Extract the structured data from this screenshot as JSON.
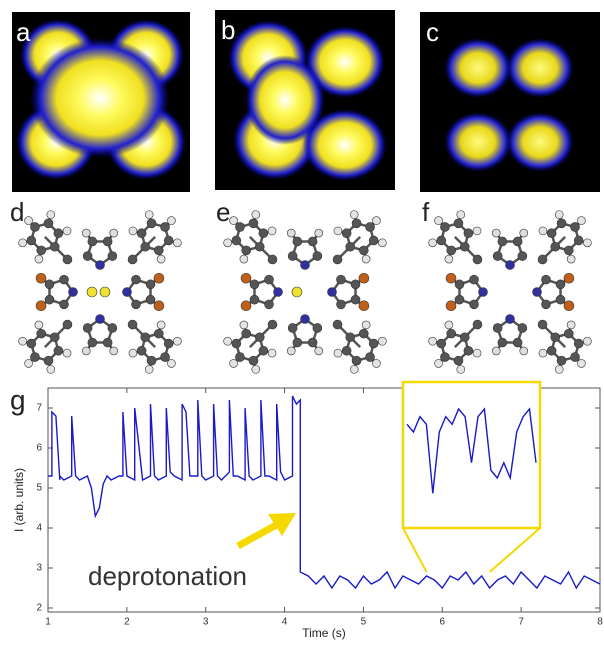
{
  "panel_labels": [
    "a",
    "b",
    "c",
    "d",
    "e",
    "f",
    "g"
  ],
  "chart_data": {
    "type": "line",
    "xlabel": "Time (s)",
    "ylabel": "I (arb. units)",
    "annotation": "deprotonation",
    "color": "#1a1ac8",
    "highlight_color": "#f5d800",
    "xlim": [
      1,
      8
    ],
    "ylim": [
      1.9,
      7.5
    ],
    "xticks": [
      1,
      2,
      3,
      4,
      5,
      6,
      7,
      8
    ],
    "yticks": [
      2,
      3,
      4,
      5,
      6,
      7
    ],
    "x": [
      1.0,
      1.05,
      1.05,
      1.1,
      1.15,
      1.15,
      1.2,
      1.3,
      1.3,
      1.35,
      1.4,
      1.5,
      1.55,
      1.6,
      1.65,
      1.7,
      1.75,
      1.8,
      1.9,
      1.95,
      1.95,
      2.0,
      2.1,
      2.1,
      2.2,
      2.3,
      2.3,
      2.35,
      2.4,
      2.5,
      2.5,
      2.55,
      2.6,
      2.7,
      2.7,
      2.75,
      2.8,
      2.9,
      2.9,
      2.95,
      3.0,
      3.1,
      3.1,
      3.15,
      3.2,
      3.3,
      3.3,
      3.35,
      3.4,
      3.5,
      3.5,
      3.55,
      3.6,
      3.7,
      3.7,
      3.75,
      3.8,
      3.9,
      3.9,
      3.95,
      4.0,
      4.1,
      4.1,
      4.15,
      4.2,
      4.2,
      4.3,
      4.4,
      4.5,
      4.6,
      4.7,
      4.8,
      4.9,
      5.0,
      5.1,
      5.2,
      5.3,
      5.4,
      5.5,
      5.6,
      5.7,
      5.8,
      5.9,
      6.0,
      6.1,
      6.2,
      6.3,
      6.4,
      6.5,
      6.6,
      6.7,
      6.8,
      6.9,
      7.0,
      7.1,
      7.2,
      7.3,
      7.4,
      7.5,
      7.6,
      7.7,
      7.8,
      7.9,
      8.0
    ],
    "values": [
      5.3,
      5.3,
      6.9,
      6.8,
      5.2,
      5.3,
      5.2,
      5.3,
      6.8,
      5.3,
      5.2,
      5.3,
      5.0,
      4.3,
      4.5,
      5.1,
      5.3,
      5.2,
      5.3,
      5.3,
      6.9,
      5.3,
      5.2,
      7.0,
      5.2,
      5.3,
      7.1,
      5.3,
      5.2,
      5.3,
      7.0,
      5.4,
      5.3,
      5.2,
      7.1,
      6.9,
      5.3,
      5.3,
      7.2,
      5.3,
      5.2,
      5.3,
      7.1,
      5.3,
      5.2,
      5.4,
      7.2,
      5.3,
      5.3,
      5.2,
      7.0,
      5.3,
      5.2,
      5.3,
      7.2,
      5.3,
      5.3,
      5.2,
      7.1,
      5.4,
      5.2,
      5.3,
      7.3,
      7.1,
      7.2,
      2.9,
      2.8,
      2.6,
      2.8,
      2.5,
      2.8,
      2.7,
      2.5,
      2.8,
      2.6,
      2.7,
      2.9,
      2.5,
      2.8,
      2.7,
      2.6,
      2.8,
      2.7,
      2.5,
      2.8,
      2.7,
      2.9,
      2.6,
      2.8,
      2.5,
      2.7,
      2.8,
      2.6,
      2.9,
      2.7,
      2.5,
      2.8,
      2.7,
      2.6,
      2.9,
      2.5,
      2.8,
      2.7,
      2.6
    ],
    "inset": {
      "xlim": [
        5.8,
        6.6
      ],
      "ylim": [
        2.2,
        3.1
      ],
      "x": [
        5.8,
        5.84,
        5.88,
        5.92,
        5.96,
        6.0,
        6.04,
        6.08,
        6.12,
        6.16,
        6.2,
        6.24,
        6.28,
        6.32,
        6.36,
        6.4,
        6.44,
        6.48,
        6.52,
        6.56,
        6.6
      ],
      "values": [
        2.85,
        2.8,
        2.9,
        2.85,
        2.4,
        2.8,
        2.9,
        2.85,
        2.95,
        2.9,
        2.6,
        2.9,
        2.95,
        2.55,
        2.5,
        2.6,
        2.5,
        2.8,
        2.9,
        2.95,
        2.6
      ]
    }
  }
}
